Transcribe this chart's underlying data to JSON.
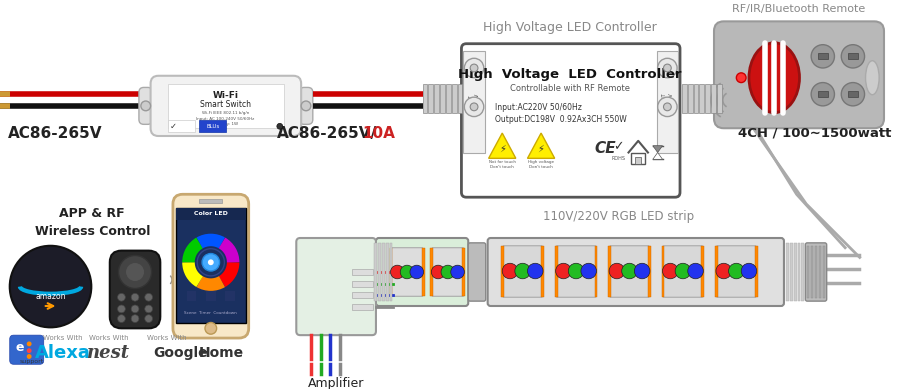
{
  "bg_color": "#ffffff",
  "label_ac_input": "AC86-265V",
  "label_ac_output": "AC86-265V/",
  "label_ac_10a": "10A",
  "label_controller_title": "High Voltage LED Controller",
  "label_controller_sub": "High  Voltage  LED  Controller",
  "label_controller_sub2": "Controllable with RF Remote",
  "label_controller_spec1": "Input:AC220V 50/60Hz",
  "label_controller_spec2": "Output:DC198V  0.92Ax3CH 550W",
  "label_rf_remote": "RF/IR/Bluetooth Remote",
  "label_4ch": "4CH / 100∼1500watt",
  "label_app_rf": "APP & RF\nWireless Control",
  "label_amplifier": "Amplifier",
  "label_led_strip": "110V/220V RGB LED strip",
  "wire_red": "#cc0000",
  "wire_black": "#111111",
  "wire_r": "#ee3333",
  "wire_g": "#22aa22",
  "wire_b": "#2233cc",
  "led_orange": "#ff8800",
  "text_gray": "#888888",
  "text_dark": "#222222",
  "alexa_blue": "#00a8e0",
  "nest_dark": "#444444"
}
